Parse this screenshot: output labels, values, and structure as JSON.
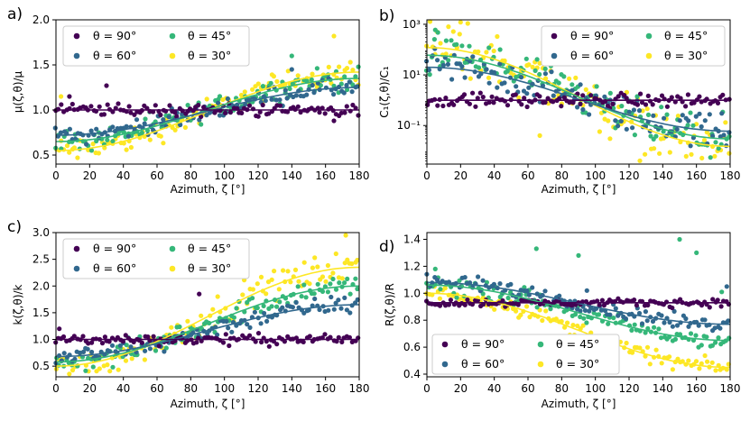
{
  "figure": {
    "colors": {
      "90": "#440154",
      "60": "#31688e",
      "45": "#35b779",
      "30": "#fde725"
    },
    "legend_labels": [
      "θ = 90°",
      "θ = 60°",
      "θ = 45°",
      "θ = 30°"
    ]
  },
  "chart_data": [
    {
      "panel": "a)",
      "type": "scatter",
      "xlabel": "Azimuth, ζ [°]",
      "ylabel": "μ(ζ,θ)/μ",
      "xlim": [
        0,
        180
      ],
      "ylim": [
        0.4,
        2.0
      ],
      "xscale": "linear",
      "yscale": "linear",
      "xticks": [
        0,
        20,
        40,
        60,
        80,
        100,
        120,
        140,
        160,
        180
      ],
      "xtick_labels": [
        "0",
        "20",
        "40",
        "60",
        "80",
        "100",
        "120",
        "140",
        "160",
        "180"
      ],
      "yticks": [
        0.5,
        1.0,
        1.5,
        2.0
      ],
      "ytick_labels": [
        "0.5",
        "1.0",
        "1.5",
        "2.0"
      ],
      "legend_position": "top-left",
      "series": [
        {
          "name": "θ = 90°",
          "theta": 90,
          "color": "#440154",
          "fit_start": 1.0,
          "fit_end": 1.0,
          "spread": 0.05,
          "outliers": [
            [
              30,
              1.27
            ],
            [
              8,
              1.15
            ],
            [
              165,
              0.88
            ]
          ]
        },
        {
          "name": "θ = 60°",
          "theta": 60,
          "color": "#31688e",
          "fit_start": 0.72,
          "fit_end": 1.25,
          "spread": 0.07,
          "outliers": [
            [
              140,
              1.45
            ]
          ]
        },
        {
          "name": "θ = 45°",
          "theta": 45,
          "color": "#35b779",
          "fit_start": 0.65,
          "fit_end": 1.35,
          "spread": 0.09,
          "outliers": [
            [
              140,
              1.6
            ]
          ]
        },
        {
          "name": "θ = 30°",
          "theta": 30,
          "color": "#fde725",
          "fit_start": 0.55,
          "fit_end": 1.42,
          "spread": 0.1,
          "outliers": [
            [
              165,
              1.82
            ],
            [
              3,
              1.15
            ]
          ]
        }
      ]
    },
    {
      "panel": "b)",
      "type": "scatter",
      "xlabel": "Azimuth, ζ [°]",
      "ylabel": "C₁(ζ,θ)/C₁",
      "xlim": [
        0,
        180
      ],
      "ylim": [
        0.003,
        1500
      ],
      "xscale": "linear",
      "yscale": "log",
      "xticks": [
        0,
        20,
        40,
        60,
        80,
        100,
        120,
        140,
        160,
        180
      ],
      "xtick_labels": [
        "0",
        "20",
        "40",
        "60",
        "80",
        "100",
        "120",
        "140",
        "160",
        "180"
      ],
      "yticks": [
        0.1,
        10,
        1000
      ],
      "ytick_labels": [
        "10⁻¹",
        "10¹",
        "10³"
      ],
      "legend_position": "top-right",
      "series": [
        {
          "name": "θ = 90°",
          "theta": 90,
          "color": "#440154",
          "fit_start": 1.0,
          "fit_end": 1.0,
          "spread": 0.2,
          "outliers": []
        },
        {
          "name": "θ = 60°",
          "theta": 60,
          "color": "#31688e",
          "fit_start": 20,
          "fit_end": 0.06,
          "spread": 0.5,
          "outliers": [
            [
              175,
              0.3
            ]
          ]
        },
        {
          "name": "θ = 45°",
          "theta": 45,
          "color": "#35b779",
          "fit_start": 60,
          "fit_end": 0.03,
          "spread": 0.6,
          "outliers": [
            [
              5,
              600
            ]
          ]
        },
        {
          "name": "θ = 30°",
          "theta": 30,
          "color": "#fde725",
          "fit_start": 120,
          "fit_end": 0.015,
          "spread": 0.8,
          "outliers": [
            [
              67,
              0.04
            ],
            [
              20,
              1200
            ]
          ]
        }
      ]
    },
    {
      "panel": "c)",
      "type": "scatter",
      "xlabel": "Azimuth, ζ [°]",
      "ylabel": "k(ζ,θ)/k",
      "xlim": [
        0,
        180
      ],
      "ylim": [
        0.3,
        3.0
      ],
      "xscale": "linear",
      "yscale": "linear",
      "xticks": [
        0,
        20,
        40,
        60,
        80,
        100,
        120,
        140,
        160,
        180
      ],
      "xtick_labels": [
        "0",
        "20",
        "40",
        "60",
        "80",
        "100",
        "120",
        "140",
        "160",
        "180"
      ],
      "yticks": [
        0.5,
        1.0,
        1.5,
        2.0,
        2.5,
        3.0
      ],
      "ytick_labels": [
        "0.5",
        "1.0",
        "1.5",
        "2.0",
        "2.5",
        "3.0"
      ],
      "legend_position": "top-left",
      "series": [
        {
          "name": "θ = 90°",
          "theta": 90,
          "color": "#440154",
          "fit_start": 1.0,
          "fit_end": 1.0,
          "spread": 0.07,
          "outliers": [
            [
              85,
              1.85
            ],
            [
              2,
              1.2
            ]
          ]
        },
        {
          "name": "θ = 60°",
          "theta": 60,
          "color": "#31688e",
          "fit_start": 0.68,
          "fit_end": 1.65,
          "spread": 0.12,
          "outliers": []
        },
        {
          "name": "θ = 45°",
          "theta": 45,
          "color": "#35b779",
          "fit_start": 0.58,
          "fit_end": 2.0,
          "spread": 0.15,
          "outliers": []
        },
        {
          "name": "θ = 30°",
          "theta": 30,
          "color": "#fde725",
          "fit_start": 0.5,
          "fit_end": 2.35,
          "spread": 0.2,
          "outliers": [
            [
              172,
              2.95
            ]
          ]
        }
      ]
    },
    {
      "panel": "d)",
      "type": "scatter",
      "xlabel": "Azimuth, ζ [°]",
      "ylabel": "R(ζ,θ)/R",
      "xlim": [
        0,
        180
      ],
      "ylim": [
        0.38,
        1.45
      ],
      "xscale": "linear",
      "yscale": "linear",
      "xticks": [
        0,
        20,
        40,
        60,
        80,
        100,
        120,
        140,
        160,
        180
      ],
      "xtick_labels": [
        "0",
        "20",
        "40",
        "60",
        "80",
        "100",
        "120",
        "140",
        "160",
        "180"
      ],
      "yticks": [
        0.4,
        0.6,
        0.8,
        1.0,
        1.2,
        1.4
      ],
      "ytick_labels": [
        "0.4",
        "0.6",
        "0.8",
        "1.0",
        "1.2",
        "1.4"
      ],
      "legend_position": "bottom-left",
      "series": [
        {
          "name": "θ = 90°",
          "theta": 90,
          "color": "#440154",
          "fit_start": 0.93,
          "fit_end": 0.93,
          "spread": 0.02,
          "outliers": []
        },
        {
          "name": "θ = 60°",
          "theta": 60,
          "color": "#31688e",
          "fit_start": 1.08,
          "fit_end": 0.77,
          "spread": 0.04,
          "outliers": [
            [
              95,
              1.02
            ],
            [
              178,
              1.05
            ]
          ]
        },
        {
          "name": "θ = 45°",
          "theta": 45,
          "color": "#35b779",
          "fit_start": 1.06,
          "fit_end": 0.65,
          "spread": 0.05,
          "outliers": [
            [
              150,
              1.4
            ],
            [
              65,
              1.33
            ],
            [
              160,
              1.3
            ],
            [
              90,
              1.28
            ],
            [
              175,
              1.01
            ],
            [
              5,
              1.18
            ]
          ]
        },
        {
          "name": "θ = 30°",
          "theta": 30,
          "color": "#fde725",
          "fit_start": 1.0,
          "fit_end": 0.45,
          "spread": 0.04,
          "outliers": []
        }
      ]
    }
  ]
}
